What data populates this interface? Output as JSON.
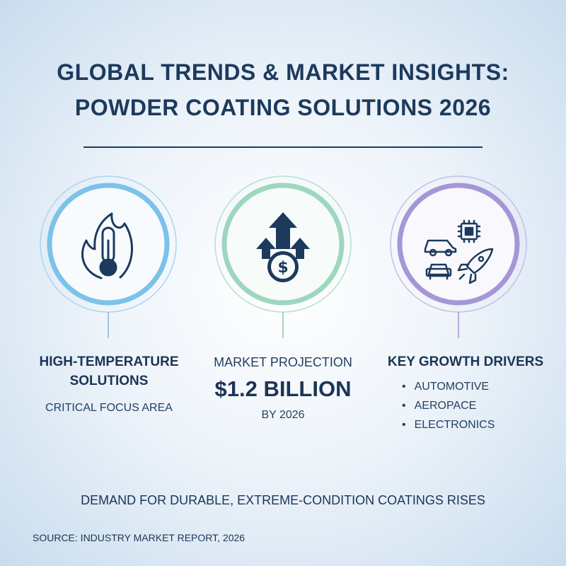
{
  "header": {
    "title_lines": [
      "GLOBAL TRENDS & MARKET INSIGHTS:",
      "POWDER COATING SOLUTIONS 2026"
    ]
  },
  "panels": [
    {
      "title": "HIGH-TEMPERATURE SOLUTIONS",
      "subtitle": "CRITICAL FOCUS AREA"
    },
    {
      "label": "MARKET PROJECTION",
      "value": "$1.2 BILLION",
      "note": "BY 2026"
    },
    {
      "title": "KEY GROWTH DRIVERS",
      "items": [
        "AUTOMOTIVE",
        "AEROPACE",
        "ELECTRONICS"
      ]
    }
  ],
  "tagline": "DEMAND FOR DURABLE, EXTREME-CONDITION COATINGS RISES",
  "source": "SOURCE: INDUSTRY MARKET REPORT, 2026"
}
